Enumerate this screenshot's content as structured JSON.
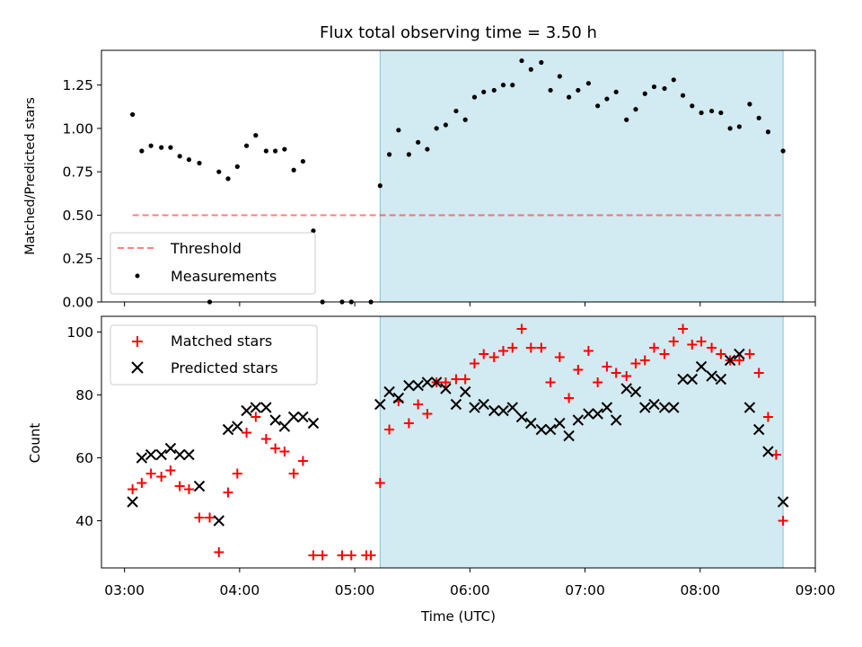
{
  "chart_data": [
    {
      "type": "scatter",
      "title": "Flux total observing time = 3.50 h",
      "ylabel": "Matched/Predicted stars",
      "xlabel": "",
      "x_unit": "hours UTC",
      "xlim": [
        2.8,
        9.0
      ],
      "ylim": [
        0,
        1.45
      ],
      "y_ticks": [
        0.0,
        0.25,
        0.5,
        0.75,
        1.0,
        1.25
      ],
      "y_tick_labels": [
        "0.00",
        "0.25",
        "0.50",
        "0.75",
        "1.00",
        "1.25"
      ],
      "x_ticks": [
        3,
        4,
        5,
        6,
        7,
        8,
        9
      ],
      "highlight_span": [
        5.22,
        8.72
      ],
      "highlight_color": "#add8e6",
      "threshold": {
        "name": "Threshold",
        "value": 0.5,
        "x_range": [
          3.07,
          8.72
        ],
        "color": "#ff0000",
        "style": "dashed"
      },
      "series": [
        {
          "name": "Measurements",
          "color": "#000000",
          "marker": "dot",
          "points": [
            [
              3.07,
              1.08
            ],
            [
              3.15,
              0.87
            ],
            [
              3.23,
              0.9
            ],
            [
              3.32,
              0.89
            ],
            [
              3.4,
              0.89
            ],
            [
              3.48,
              0.84
            ],
            [
              3.56,
              0.82
            ],
            [
              3.65,
              0.8
            ],
            [
              3.74,
              0.0
            ],
            [
              3.82,
              0.75
            ],
            [
              3.9,
              0.71
            ],
            [
              3.98,
              0.78
            ],
            [
              4.06,
              0.9
            ],
            [
              4.14,
              0.96
            ],
            [
              4.23,
              0.87
            ],
            [
              4.31,
              0.87
            ],
            [
              4.39,
              0.88
            ],
            [
              4.47,
              0.76
            ],
            [
              4.55,
              0.81
            ],
            [
              4.64,
              0.41
            ],
            [
              4.72,
              0.0
            ],
            [
              4.89,
              0.0
            ],
            [
              4.97,
              0.0
            ],
            [
              5.14,
              0.0
            ],
            [
              5.22,
              0.67
            ],
            [
              5.3,
              0.85
            ],
            [
              5.38,
              0.99
            ],
            [
              5.47,
              0.85
            ],
            [
              5.55,
              0.92
            ],
            [
              5.63,
              0.88
            ],
            [
              5.71,
              1.0
            ],
            [
              5.79,
              1.02
            ],
            [
              5.88,
              1.1
            ],
            [
              5.96,
              1.05
            ],
            [
              6.04,
              1.18
            ],
            [
              6.12,
              1.21
            ],
            [
              6.21,
              1.22
            ],
            [
              6.29,
              1.25
            ],
            [
              6.37,
              1.25
            ],
            [
              6.45,
              1.39
            ],
            [
              6.53,
              1.34
            ],
            [
              6.62,
              1.38
            ],
            [
              6.7,
              1.22
            ],
            [
              6.78,
              1.3
            ],
            [
              6.86,
              1.18
            ],
            [
              6.94,
              1.22
            ],
            [
              7.03,
              1.26
            ],
            [
              7.11,
              1.13
            ],
            [
              7.19,
              1.17
            ],
            [
              7.27,
              1.21
            ],
            [
              7.36,
              1.05
            ],
            [
              7.44,
              1.11
            ],
            [
              7.52,
              1.2
            ],
            [
              7.6,
              1.24
            ],
            [
              7.69,
              1.23
            ],
            [
              7.77,
              1.28
            ],
            [
              7.85,
              1.19
            ],
            [
              7.93,
              1.13
            ],
            [
              8.01,
              1.09
            ],
            [
              8.1,
              1.1
            ],
            [
              8.18,
              1.09
            ],
            [
              8.26,
              1.0
            ],
            [
              8.34,
              1.01
            ],
            [
              8.43,
              1.14
            ],
            [
              8.51,
              1.06
            ],
            [
              8.59,
              0.98
            ],
            [
              8.72,
              0.87
            ]
          ]
        }
      ],
      "legend_location": "lower-left"
    },
    {
      "type": "scatter",
      "title": "",
      "xlabel": "Time (UTC)",
      "ylabel": "Count",
      "x_unit": "hours UTC",
      "xlim": [
        2.8,
        9.0
      ],
      "ylim": [
        25,
        105
      ],
      "y_ticks": [
        40,
        60,
        80,
        100
      ],
      "x_ticks": [
        3,
        4,
        5,
        6,
        7,
        8,
        9
      ],
      "x_tick_labels": [
        "03:00",
        "04:00",
        "05:00",
        "06:00",
        "07:00",
        "08:00",
        "09:00"
      ],
      "highlight_span": [
        5.22,
        8.72
      ],
      "highlight_color": "#add8e6",
      "series": [
        {
          "name": "Matched stars",
          "color": "#ff0000",
          "marker": "plus",
          "points": [
            [
              3.07,
              50
            ],
            [
              3.15,
              52
            ],
            [
              3.23,
              55
            ],
            [
              3.32,
              54
            ],
            [
              3.4,
              56
            ],
            [
              3.48,
              51
            ],
            [
              3.56,
              50
            ],
            [
              3.65,
              41
            ],
            [
              3.74,
              41
            ],
            [
              3.82,
              30
            ],
            [
              3.9,
              49
            ],
            [
              3.98,
              55
            ],
            [
              4.06,
              68
            ],
            [
              4.14,
              73
            ],
            [
              4.23,
              66
            ],
            [
              4.31,
              63
            ],
            [
              4.39,
              62
            ],
            [
              4.47,
              55
            ],
            [
              4.55,
              59
            ],
            [
              4.64,
              29
            ],
            [
              4.72,
              29
            ],
            [
              4.89,
              29
            ],
            [
              4.97,
              29
            ],
            [
              5.1,
              29
            ],
            [
              5.14,
              29
            ],
            [
              5.22,
              52
            ],
            [
              5.3,
              69
            ],
            [
              5.38,
              78
            ],
            [
              5.47,
              71
            ],
            [
              5.55,
              77
            ],
            [
              5.63,
              74
            ],
            [
              5.71,
              84
            ],
            [
              5.79,
              84
            ],
            [
              5.88,
              85
            ],
            [
              5.96,
              85
            ],
            [
              6.04,
              90
            ],
            [
              6.12,
              93
            ],
            [
              6.21,
              92
            ],
            [
              6.29,
              94
            ],
            [
              6.37,
              95
            ],
            [
              6.45,
              101
            ],
            [
              6.53,
              95
            ],
            [
              6.62,
              95
            ],
            [
              6.7,
              84
            ],
            [
              6.78,
              92
            ],
            [
              6.86,
              79
            ],
            [
              6.94,
              88
            ],
            [
              7.03,
              94
            ],
            [
              7.11,
              84
            ],
            [
              7.19,
              89
            ],
            [
              7.27,
              87
            ],
            [
              7.36,
              86
            ],
            [
              7.44,
              90
            ],
            [
              7.52,
              91
            ],
            [
              7.6,
              95
            ],
            [
              7.69,
              93
            ],
            [
              7.77,
              97
            ],
            [
              7.85,
              101
            ],
            [
              7.93,
              96
            ],
            [
              8.01,
              97
            ],
            [
              8.1,
              95
            ],
            [
              8.18,
              93
            ],
            [
              8.26,
              91
            ],
            [
              8.34,
              91
            ],
            [
              8.43,
              93
            ],
            [
              8.51,
              87
            ],
            [
              8.59,
              73
            ],
            [
              8.66,
              61
            ],
            [
              8.72,
              40
            ]
          ]
        },
        {
          "name": "Predicted stars",
          "color": "#000000",
          "marker": "x",
          "points": [
            [
              3.07,
              46
            ],
            [
              3.15,
              60
            ],
            [
              3.23,
              61
            ],
            [
              3.32,
              61
            ],
            [
              3.4,
              63
            ],
            [
              3.48,
              61
            ],
            [
              3.56,
              61
            ],
            [
              3.65,
              51
            ],
            [
              3.82,
              40
            ],
            [
              3.9,
              69
            ],
            [
              3.98,
              70
            ],
            [
              4.06,
              75
            ],
            [
              4.14,
              76
            ],
            [
              4.23,
              76
            ],
            [
              4.31,
              72
            ],
            [
              4.39,
              70
            ],
            [
              4.47,
              73
            ],
            [
              4.55,
              73
            ],
            [
              4.64,
              71
            ],
            [
              5.22,
              77
            ],
            [
              5.3,
              81
            ],
            [
              5.38,
              79
            ],
            [
              5.47,
              83
            ],
            [
              5.55,
              83
            ],
            [
              5.63,
              84
            ],
            [
              5.71,
              84
            ],
            [
              5.79,
              82
            ],
            [
              5.88,
              77
            ],
            [
              5.96,
              81
            ],
            [
              6.04,
              76
            ],
            [
              6.12,
              77
            ],
            [
              6.21,
              75
            ],
            [
              6.29,
              75
            ],
            [
              6.37,
              76
            ],
            [
              6.45,
              73
            ],
            [
              6.53,
              71
            ],
            [
              6.62,
              69
            ],
            [
              6.7,
              69
            ],
            [
              6.78,
              71
            ],
            [
              6.86,
              67
            ],
            [
              6.94,
              72
            ],
            [
              7.03,
              74
            ],
            [
              7.11,
              74
            ],
            [
              7.19,
              76
            ],
            [
              7.27,
              72
            ],
            [
              7.36,
              82
            ],
            [
              7.44,
              81
            ],
            [
              7.52,
              76
            ],
            [
              7.6,
              77
            ],
            [
              7.69,
              76
            ],
            [
              7.77,
              76
            ],
            [
              7.85,
              85
            ],
            [
              7.93,
              85
            ],
            [
              8.01,
              89
            ],
            [
              8.1,
              86
            ],
            [
              8.18,
              85
            ],
            [
              8.26,
              91
            ],
            [
              8.34,
              93
            ],
            [
              8.43,
              76
            ],
            [
              8.51,
              69
            ],
            [
              8.59,
              62
            ],
            [
              8.72,
              46
            ]
          ]
        }
      ],
      "legend_location": "upper-left"
    }
  ]
}
